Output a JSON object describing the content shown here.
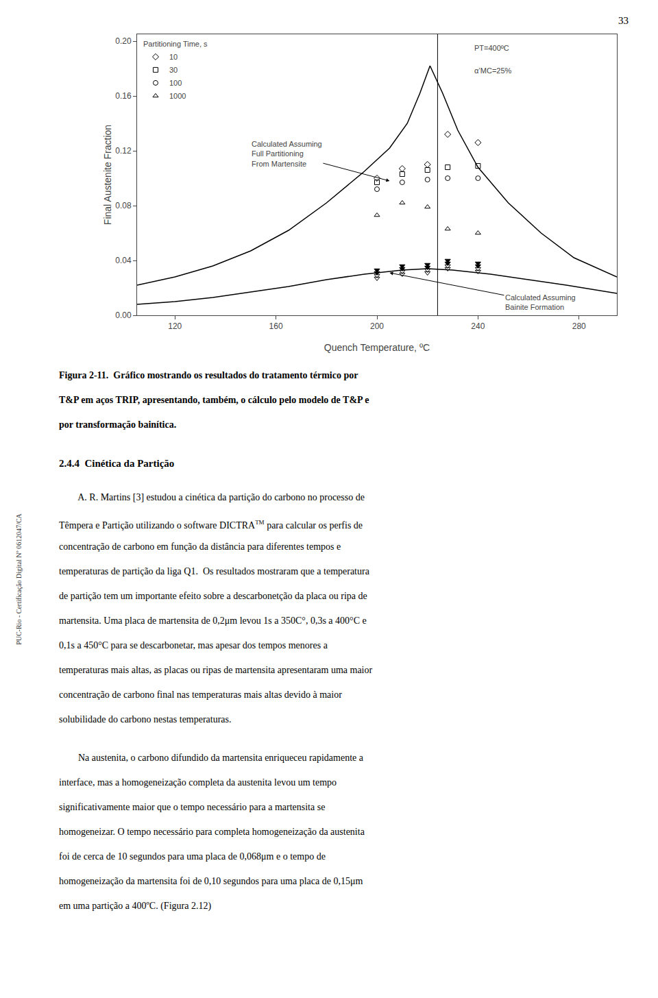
{
  "chart_data": {
    "type": "scatter",
    "xlabel": "Quench Temperature, ºC",
    "ylabel": "Final Austenite Fraction",
    "xlim": [
      105,
      295
    ],
    "ylim": [
      0.0,
      0.205
    ],
    "xticks": [
      120,
      160,
      200,
      240,
      280
    ],
    "yticks": [
      {
        "value": 0.0,
        "label": "0.00"
      },
      {
        "value": 0.04,
        "label": "0.04"
      },
      {
        "value": 0.08,
        "label": "0.08"
      },
      {
        "value": 0.12,
        "label": "0.12"
      },
      {
        "value": 0.16,
        "label": "0.16"
      },
      {
        "value": 0.2,
        "label": "0.20"
      }
    ],
    "grid": false,
    "legend": "upper left",
    "legend_title": "Partitioning Time, s",
    "series": [
      {
        "type": "line",
        "color": "#000000",
        "line_style": "solid",
        "x": [
          105,
          120,
          135,
          150,
          165,
          180,
          195,
          205,
          212,
          217,
          221,
          226,
          232,
          240,
          252,
          265,
          278,
          295
        ],
        "values": [
          0.022,
          0.028,
          0.036,
          0.047,
          0.062,
          0.082,
          0.105,
          0.122,
          0.14,
          0.162,
          0.182,
          0.162,
          0.135,
          0.108,
          0.082,
          0.06,
          0.042,
          0.028
        ]
      },
      {
        "type": "line",
        "color": "#000000",
        "line_style": "solid",
        "x": [
          105,
          120,
          135,
          150,
          165,
          180,
          195,
          210,
          220,
          230,
          245,
          260,
          275,
          295
        ],
        "values": [
          0.008,
          0.01,
          0.013,
          0.017,
          0.021,
          0.026,
          0.03,
          0.033,
          0.034,
          0.033,
          0.03,
          0.026,
          0.022,
          0.016
        ]
      },
      {
        "name": "10",
        "type": "scatter",
        "marker": "diamond-open",
        "color": "#000000",
        "x": [
          200,
          210,
          220,
          228,
          240
        ],
        "values": [
          0.1,
          0.107,
          0.11,
          0.132,
          0.126
        ]
      },
      {
        "name": "30",
        "type": "scatter",
        "marker": "square-open",
        "color": "#000000",
        "x": [
          200,
          210,
          220,
          228,
          240
        ],
        "values": [
          0.097,
          0.103,
          0.106,
          0.108,
          0.109
        ]
      },
      {
        "name": "100",
        "type": "scatter",
        "marker": "circle-open",
        "color": "#000000",
        "x": [
          200,
          210,
          220,
          228,
          240
        ],
        "values": [
          0.092,
          0.097,
          0.099,
          0.1,
          0.1
        ]
      },
      {
        "name": "1000",
        "type": "scatter",
        "marker": "triangle-up-open",
        "color": "#000000",
        "x": [
          200,
          210,
          220,
          228,
          240
        ],
        "values": [
          0.073,
          0.082,
          0.079,
          0.063,
          0.06
        ]
      },
      {
        "type": "scatter",
        "marker": "triangle-down",
        "color": "#000000",
        "x": [
          200,
          210,
          220,
          228,
          240
        ],
        "values": [
          0.033,
          0.036,
          0.037,
          0.04,
          0.038
        ]
      },
      {
        "type": "scatter",
        "marker": "triangle-down",
        "color": "#000000",
        "x": [
          200,
          210,
          220,
          228,
          240
        ],
        "values": [
          0.031,
          0.034,
          0.035,
          0.038,
          0.036
        ]
      },
      {
        "type": "scatter",
        "marker": "triangle-down-open",
        "color": "#000000",
        "x": [
          200,
          210,
          220,
          228,
          240
        ],
        "values": [
          0.029,
          0.032,
          0.033,
          0.036,
          0.034
        ]
      },
      {
        "type": "scatter",
        "marker": "triangle-down-open",
        "color": "#000000",
        "x": [
          200,
          210,
          220,
          228,
          240
        ],
        "values": [
          0.027,
          0.03,
          0.031,
          0.034,
          0.032
        ]
      }
    ],
    "vlines": [
      224
    ],
    "annotations": [
      {
        "text": "PT=400ºC"
      },
      {
        "text": "α’MC=25%"
      },
      {
        "text": "Calculated Assuming\nFull Partitioning\nFrom Martensite",
        "x": 205,
        "y": 0.098
      },
      {
        "text": "Calculated Assuming\nBainite Formation",
        "x": 205,
        "y": 0.031
      }
    ]
  },
  "page": {
    "page_number": "33",
    "left_margin_text": "PUC-Rio - Certificação Digital Nº 0612047/CA",
    "caption_lines": [
      "Figura 2-11.  Gráfico mostrando os resultados do tratamento térmico por",
      "T&P em aços TRIP, apresentando, também, o cálculo pelo modelo de T&P e",
      "por transformação bainítica."
    ],
    "section_heading": "2.4.4  Cinética da Partição",
    "p1_lines": [
      "        A. R. Martins [3] estudou a cinética da partição do carbono no processo de",
      [
        {
          "text": "Têmpera e Partição utilizando o software DICTRA"
        },
        {
          "sup": "TM"
        },
        {
          "text": " para calcular os perfis de"
        }
      ],
      "concentração de carbono em função da distância para diferentes tempos e",
      "temperaturas de partição da liga Q1.  Os resultados mostraram que a temperatura",
      "de partição tem um importante efeito sobre a descarbonetção da placa ou ripa de",
      "martensita. Uma placa de martensita de 0,2μm levou 1s a 350C°, 0,3s a 400°C e",
      "0,1s a 450°C para se descarbonetar, mas apesar dos tempos menores a",
      "temperaturas mais altas, as placas ou ripas de martensita apresentaram uma maior",
      "concentração de carbono final nas temperaturas mais altas devido à maior",
      "solubilidade do carbono nestas temperaturas."
    ],
    "p2_lines": [
      "        Na austenita, o carbono difundido da martensita enriqueceu rapidamente a",
      "interface, mas a homogeneização completa da austenita levou um tempo",
      "significativamente maior que o tempo necessário para a martensita se",
      "homogeneizar. O tempo necessário para completa homogeneização da austenita",
      "foi de cerca de 10 segundos para uma placa de 0,068μm e o tempo de",
      "homogeneização da martensita foi de 0,10 segundos para uma placa de 0,15μm",
      "em uma partição a 400ºC. (Figura 2.12)"
    ]
  }
}
